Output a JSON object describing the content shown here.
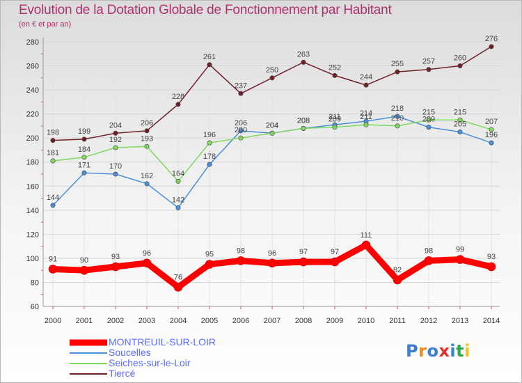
{
  "chart_data": {
    "type": "line",
    "title": "Evolution de la Dotation Globale de Fonctionnement par Habitant",
    "subtitle": "(en € et par an)",
    "xlabel": "",
    "ylabel": "",
    "ylim": [
      60,
      280
    ],
    "yticks": [
      60,
      80,
      100,
      120,
      140,
      160,
      180,
      200,
      220,
      240,
      260,
      280
    ],
    "grid": true,
    "legend": "bottom-left",
    "x": [
      2000,
      2001,
      2002,
      2003,
      2004,
      2005,
      2006,
      2007,
      2008,
      2009,
      2010,
      2011,
      2012,
      2013,
      2014
    ],
    "series": [
      {
        "name": "MONTREUIL-SUR-LOIR",
        "color": "#ff0000",
        "thick": true,
        "values": [
          91,
          90,
          93,
          96,
          76,
          95,
          98,
          96,
          97,
          97,
          111,
          82,
          98,
          99,
          93
        ]
      },
      {
        "name": "Soucelles",
        "color": "#4a90d9",
        "thick": false,
        "values": [
          144,
          171,
          170,
          162,
          142,
          178,
          206,
          204,
          208,
          211,
          214,
          218,
          209,
          205,
          196
        ]
      },
      {
        "name": "Seiches-sur-le-Loir",
        "color": "#80d860",
        "thick": false,
        "values": [
          181,
          184,
          192,
          193,
          164,
          196,
          200,
          204,
          208,
          209,
          211,
          210,
          215,
          215,
          207
        ]
      },
      {
        "name": "Tiercé",
        "color": "#702028",
        "thick": false,
        "values": [
          198,
          199,
          204,
          206,
          228,
          261,
          237,
          250,
          263,
          252,
          244,
          255,
          257,
          260,
          276
        ]
      }
    ]
  },
  "logo": {
    "text": "Proxiti"
  }
}
